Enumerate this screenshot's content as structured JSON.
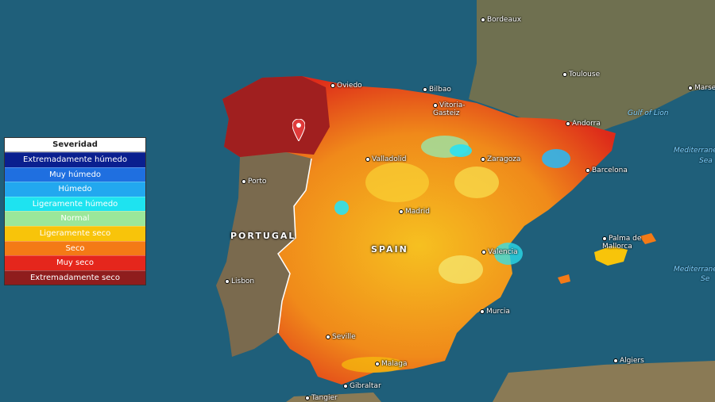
{
  "map": {
    "colors": {
      "ocean": "#1f5f7a",
      "land": "#6b6a4a",
      "portugal": "#7a6a4e"
    },
    "cities": [
      {
        "name": "Bordeaux",
        "id": "bordeaux"
      },
      {
        "name": "Toulouse",
        "id": "toulouse"
      },
      {
        "name": "Marseille",
        "id": "marseille"
      },
      {
        "name": "Oviedo",
        "id": "oviedo"
      },
      {
        "name": "Bilbao",
        "id": "bilbao"
      },
      {
        "name": "Vitoria-Gasteiz",
        "id": "vitoria"
      },
      {
        "name": "Andorra",
        "id": "andorra"
      },
      {
        "name": "Valladolid",
        "id": "valladolid"
      },
      {
        "name": "Zaragoza",
        "id": "zaragoza"
      },
      {
        "name": "Barcelona",
        "id": "barcelona"
      },
      {
        "name": "Porto",
        "id": "porto"
      },
      {
        "name": "Madrid",
        "id": "madrid"
      },
      {
        "name": "Palma de Mallorca",
        "id": "palma"
      },
      {
        "name": "Valencia",
        "id": "valencia"
      },
      {
        "name": "Lisbon",
        "id": "lisbon"
      },
      {
        "name": "Murcia",
        "id": "murcia"
      },
      {
        "name": "Seville",
        "id": "seville"
      },
      {
        "name": "Malaga",
        "id": "malaga"
      },
      {
        "name": "Gibraltar",
        "id": "gibraltar"
      },
      {
        "name": "Algiers",
        "id": "algiers"
      },
      {
        "name": "Tangier",
        "id": "tangier"
      }
    ],
    "countries": {
      "portugal": "PORTUGAL",
      "spain": "SPAIN"
    },
    "seas": {
      "gulf_of_lion": "Gulf of Lion",
      "mediterranean_1": "Mediterranea",
      "mediterranean_1b": "Sea",
      "mediterranean_2": "Mediterrane",
      "mediterranean_2b": "Se"
    },
    "marker_icon": "map-pin-icon"
  },
  "legend": {
    "title": "Severidad",
    "items": [
      {
        "label": "Extremadamente húmedo",
        "color": "#0a1f8f"
      },
      {
        "label": "Muy húmedo",
        "color": "#1f6fe0"
      },
      {
        "label": "Húmedo",
        "color": "#22a8ef"
      },
      {
        "label": "Ligeramente húmedo",
        "color": "#1ee3f0"
      },
      {
        "label": "Normal",
        "color": "#9be79a"
      },
      {
        "label": "Ligeramente seco",
        "color": "#f8c40a"
      },
      {
        "label": "Seco",
        "color": "#f47a16"
      },
      {
        "label": "Muy seco",
        "color": "#e5261c"
      },
      {
        "label": "Extremadamente seco",
        "color": "#8f1d1d"
      }
    ]
  }
}
